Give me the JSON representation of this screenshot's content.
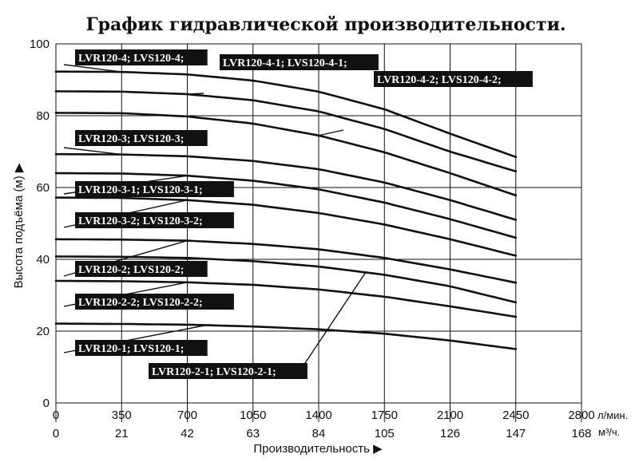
{
  "chart_data": {
    "type": "line",
    "title": "График гидравлической производительности.",
    "ylabel": "Высота подъёма (м) ▶",
    "xlabel": "Производительность ▶",
    "x_primary_unit": "л/мин.",
    "x_secondary_unit": "м³/ч.",
    "x_ticks_primary": [
      "0",
      "350",
      "700",
      "1050",
      "1400",
      "1750",
      "2100",
      "2450",
      "2800"
    ],
    "x_ticks_secondary": [
      "0",
      "21",
      "42",
      "63",
      "84",
      "105",
      "126",
      "147",
      "168"
    ],
    "y_ticks": [
      "0",
      "20",
      "40",
      "60",
      "80",
      "100"
    ],
    "xlim": [
      0,
      2800
    ],
    "ylim": [
      0,
      100
    ],
    "grid": true,
    "series": [
      {
        "name": "LVR120-4; LVS120-4;",
        "x": [
          0,
          350,
          700,
          1050,
          1400,
          1750,
          2100,
          2450
        ],
        "y": [
          92.3,
          92.2,
          91.5,
          89.8,
          86.7,
          81.8,
          75,
          68.5
        ]
      },
      {
        "name": "LVR120-4-1; LVS120-4-1;",
        "x": [
          0,
          350,
          700,
          1050,
          1400,
          1750,
          2100,
          2450
        ],
        "y": [
          86.8,
          86.7,
          86,
          84.3,
          81.2,
          76.3,
          70,
          64.5
        ]
      },
      {
        "name": "LVR120-4-2; LVS120-4-2;",
        "x": [
          0,
          350,
          700,
          1050,
          1400,
          1750,
          2100,
          2450
        ],
        "y": [
          80.8,
          80.7,
          79.8,
          77.8,
          74.5,
          69.8,
          64,
          57.8
        ]
      },
      {
        "name": "LVR120-3; LVS120-3;",
        "x": [
          0,
          350,
          700,
          1050,
          1400,
          1750,
          2100,
          2450
        ],
        "y": [
          69.3,
          69.2,
          68.7,
          67.4,
          65.1,
          61.4,
          56.5,
          51
        ]
      },
      {
        "name": "LVR120-3-1; LVS120-3-1;",
        "x": [
          0,
          350,
          700,
          1050,
          1400,
          1750,
          2100,
          2450
        ],
        "y": [
          64,
          63.9,
          63.3,
          61.9,
          59.5,
          55.8,
          51.2,
          46
        ]
      },
      {
        "name": "LVR120-3-2; LVS120-3-2;",
        "x": [
          0,
          350,
          700,
          1050,
          1400,
          1750,
          2100,
          2450
        ],
        "y": [
          57.2,
          57.1,
          56.5,
          55.2,
          52.9,
          49.7,
          45.6,
          41
        ]
      },
      {
        "name": "LVR120-2; LVS120-2;",
        "x": [
          0,
          350,
          700,
          1050,
          1400,
          1750,
          2100,
          2450
        ],
        "y": [
          45.6,
          45.5,
          45.2,
          44.3,
          42.8,
          40.4,
          37.2,
          33.5
        ]
      },
      {
        "name": "LVR120-2-1; LVS120-2-1;",
        "x": [
          0,
          350,
          700,
          1050,
          1400,
          1750,
          2100,
          2450
        ],
        "y": [
          40.8,
          40.7,
          40.4,
          39.5,
          38,
          35.7,
          32.5,
          28
        ]
      },
      {
        "name": "LVR120-2-2; LVS120-2-2;",
        "x": [
          0,
          350,
          700,
          1050,
          1400,
          1750,
          2100,
          2450
        ],
        "y": [
          34,
          33.9,
          33.6,
          32.9,
          31.6,
          29.6,
          26.9,
          24
        ]
      },
      {
        "name": "LVR120-1; LVS120-1;",
        "x": [
          0,
          350,
          700,
          1050,
          1400,
          1750,
          2100,
          2450
        ],
        "y": [
          22.1,
          22,
          21.8,
          21.3,
          20.5,
          19.3,
          17.4,
          15
        ]
      }
    ],
    "labels": [
      {
        "text": "LVR120-4; LVS120-4;",
        "series": 0
      },
      {
        "text": "LVR120-4-1; LVS120-4-1;",
        "series": 1
      },
      {
        "text": "LVR120-4-2; LVS120-4-2;",
        "series": 2
      },
      {
        "text": "LVR120-3; LVS120-3;",
        "series": 3
      },
      {
        "text": "LVR120-3-1; LVS120-3-1;",
        "series": 4
      },
      {
        "text": "LVR120-3-2; LVS120-3-2;",
        "series": 5
      },
      {
        "text": "LVR120-2; LVS120-2;",
        "series": 6
      },
      {
        "text": "LVR120-2-2; LVS120-2-2;",
        "series": 8
      },
      {
        "text": "LVR120-1; LVS120-1;",
        "series": 9
      },
      {
        "text": "LVR120-2-1; LVS120-2-1;",
        "series": 7
      }
    ]
  }
}
